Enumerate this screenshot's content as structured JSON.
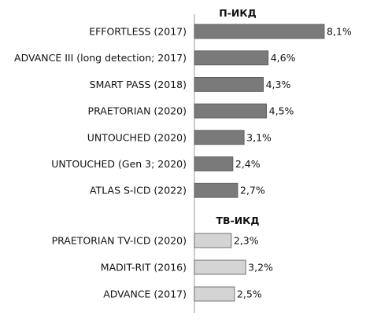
{
  "chart_data": {
    "type": "bar",
    "orientation": "horizontal",
    "groups": [
      {
        "title": "П-ИКД",
        "color": "#7a7a7a",
        "categories": [
          "EFFORTLESS (2017)",
          "ADVANCE III (long detection; 2017)",
          "SMART PASS (2018)",
          "PRAETORIAN (2020)",
          "UNTOUCHED (2020)",
          "UNTOUCHED (Gen 3; 2020)",
          "ATLAS S-ICD (2022)"
        ],
        "values": [
          8.1,
          4.6,
          4.3,
          4.5,
          3.1,
          2.4,
          2.7
        ],
        "value_labels": [
          "8,1%",
          "4,6%",
          "4,3%",
          "4,5%",
          "3,1%",
          "2,4%",
          "2,7%"
        ]
      },
      {
        "title": "ТВ-ИКД",
        "color": "#d4d4d4",
        "categories": [
          "PRAETORIAN TV-ICD (2020)",
          "MADIT-RIT (2016)",
          "ADVANCE (2017)"
        ],
        "values": [
          2.3,
          3.2,
          2.5
        ],
        "value_labels": [
          "2,3%",
          "3,2%",
          "2,5%"
        ]
      }
    ],
    "xlim": [
      0,
      8.1
    ],
    "grid": false,
    "axis_line_color": "#999999",
    "bar_edge_color": "#555555"
  }
}
